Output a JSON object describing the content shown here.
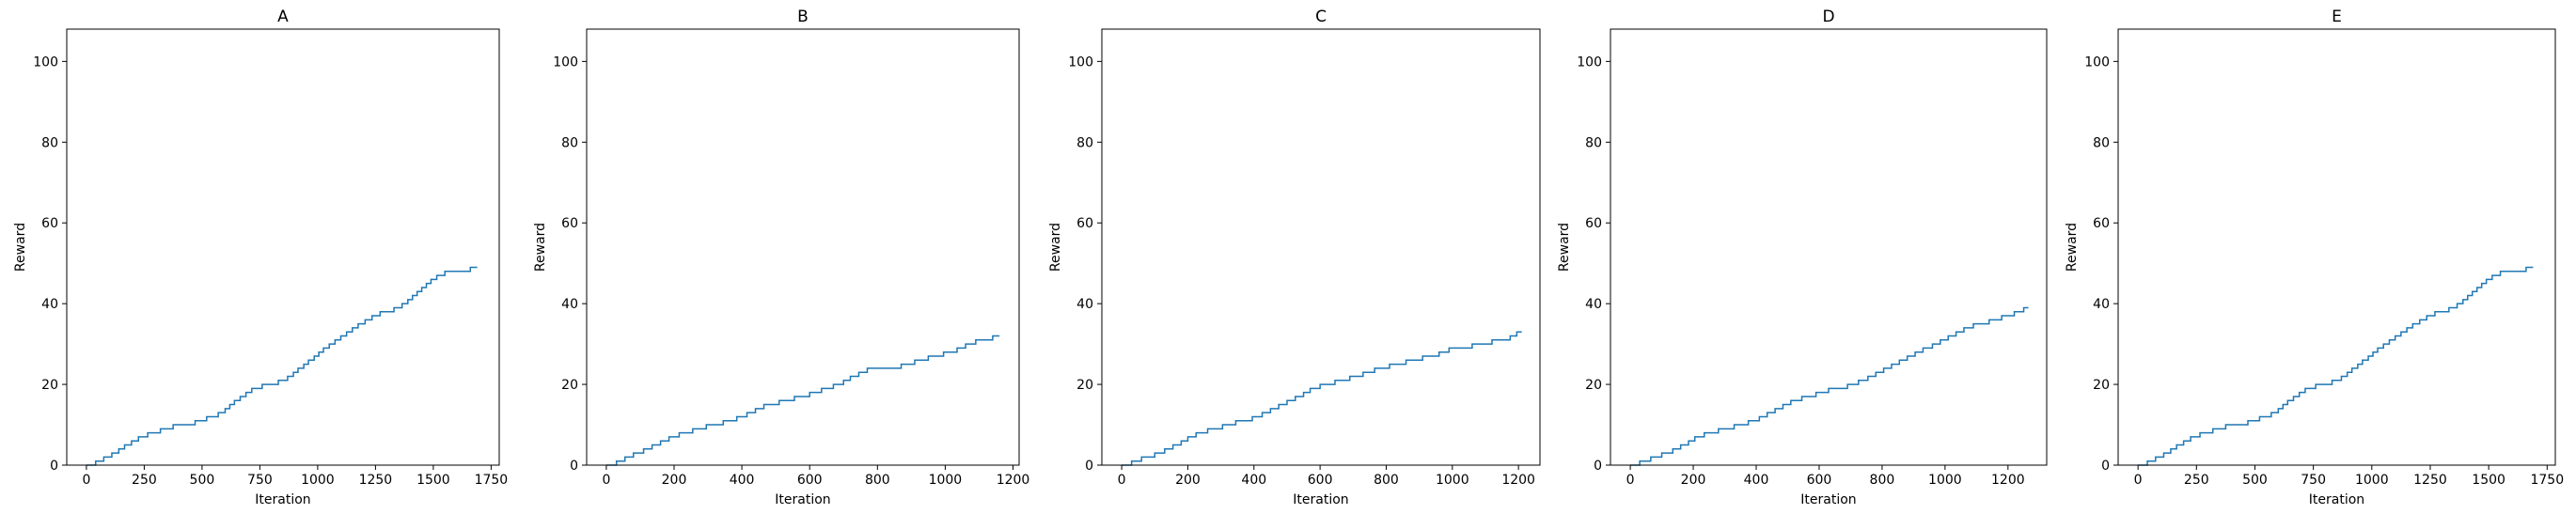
{
  "chart_data": [
    {
      "type": "line",
      "title": "A",
      "xlabel": "Iteration",
      "ylabel": "Reward",
      "xlim": [
        -85,
        1785
      ],
      "ylim": [
        0,
        108
      ],
      "xticks": [
        0,
        250,
        500,
        750,
        1000,
        1250,
        1500,
        1750
      ],
      "yticks": [
        0,
        20,
        40,
        60,
        80,
        100
      ],
      "grid": false,
      "series": [
        {
          "color": "#1f77b4",
          "x": [
            0,
            40,
            75,
            110,
            140,
            165,
            195,
            225,
            265,
            320,
            375,
            470,
            520,
            570,
            600,
            620,
            640,
            665,
            690,
            715,
            760,
            830,
            870,
            895,
            915,
            940,
            960,
            985,
            1005,
            1025,
            1050,
            1075,
            1100,
            1125,
            1150,
            1175,
            1205,
            1235,
            1270,
            1330,
            1365,
            1390,
            1410,
            1430,
            1450,
            1470,
            1490,
            1515,
            1535,
            1550,
            1600,
            1660,
            1690
          ],
          "y": [
            0,
            1,
            2,
            3,
            4,
            5,
            6,
            7,
            8,
            9,
            10,
            11,
            12,
            13,
            14,
            15,
            16,
            17,
            18,
            19,
            20,
            21,
            22,
            23,
            24,
            25,
            26,
            27,
            28,
            29,
            30,
            31,
            32,
            33,
            34,
            35,
            36,
            37,
            38,
            39,
            40,
            41,
            42,
            43,
            44,
            45,
            46,
            47,
            47,
            48,
            48,
            49,
            49
          ]
        }
      ]
    },
    {
      "type": "line",
      "title": "B",
      "xlabel": "Iteration",
      "ylabel": "Reward",
      "xlim": [
        -58,
        1218
      ],
      "ylim": [
        0,
        108
      ],
      "xticks": [
        0,
        200,
        400,
        600,
        800,
        1000,
        1200
      ],
      "yticks": [
        0,
        20,
        40,
        60,
        80,
        100
      ],
      "grid": false,
      "series": [
        {
          "color": "#1f77b4",
          "x": [
            0,
            30,
            55,
            80,
            110,
            135,
            160,
            185,
            215,
            255,
            295,
            345,
            385,
            415,
            440,
            465,
            510,
            555,
            600,
            635,
            670,
            700,
            720,
            745,
            770,
            805,
            870,
            910,
            950,
            995,
            1035,
            1060,
            1090,
            1140,
            1160
          ],
          "y": [
            0,
            1,
            2,
            3,
            4,
            5,
            6,
            7,
            8,
            9,
            10,
            11,
            12,
            13,
            14,
            15,
            16,
            17,
            18,
            19,
            20,
            21,
            22,
            23,
            24,
            24,
            25,
            26,
            27,
            28,
            29,
            30,
            31,
            32,
            32
          ]
        }
      ]
    },
    {
      "type": "line",
      "title": "C",
      "xlabel": "Iteration",
      "ylabel": "Reward",
      "xlim": [
        -60,
        1265
      ],
      "ylim": [
        0,
        108
      ],
      "xticks": [
        0,
        200,
        400,
        600,
        800,
        1000,
        1200
      ],
      "yticks": [
        0,
        20,
        40,
        60,
        80,
        100
      ],
      "grid": false,
      "series": [
        {
          "color": "#1f77b4",
          "x": [
            0,
            30,
            60,
            100,
            130,
            155,
            180,
            200,
            225,
            260,
            305,
            345,
            395,
            425,
            450,
            475,
            500,
            525,
            550,
            570,
            600,
            645,
            690,
            730,
            765,
            810,
            860,
            910,
            960,
            990,
            1060,
            1120,
            1175,
            1195,
            1210
          ],
          "y": [
            0,
            1,
            2,
            3,
            4,
            5,
            6,
            7,
            8,
            9,
            10,
            11,
            12,
            13,
            14,
            15,
            16,
            17,
            18,
            19,
            20,
            21,
            22,
            23,
            24,
            25,
            26,
            27,
            28,
            29,
            30,
            31,
            32,
            33,
            33
          ]
        }
      ]
    },
    {
      "type": "line",
      "title": "D",
      "xlabel": "Iteration",
      "ylabel": "Reward",
      "xlim": [
        -63,
        1323
      ],
      "ylim": [
        0,
        108
      ],
      "xticks": [
        0,
        200,
        400,
        600,
        800,
        1000,
        1200
      ],
      "yticks": [
        0,
        20,
        40,
        60,
        80,
        100
      ],
      "grid": false,
      "series": [
        {
          "color": "#1f77b4",
          "x": [
            0,
            30,
            65,
            100,
            135,
            160,
            185,
            205,
            235,
            280,
            330,
            375,
            410,
            435,
            460,
            485,
            510,
            545,
            590,
            630,
            690,
            725,
            755,
            780,
            805,
            830,
            855,
            880,
            905,
            930,
            960,
            985,
            1010,
            1035,
            1060,
            1090,
            1140,
            1180,
            1220,
            1250,
            1265
          ],
          "y": [
            0,
            1,
            2,
            3,
            4,
            5,
            6,
            7,
            8,
            9,
            10,
            11,
            12,
            13,
            14,
            15,
            16,
            17,
            18,
            19,
            20,
            21,
            22,
            23,
            24,
            25,
            26,
            27,
            28,
            29,
            30,
            31,
            32,
            33,
            34,
            35,
            36,
            37,
            38,
            39,
            39
          ]
        }
      ]
    },
    {
      "type": "line",
      "title": "E",
      "xlabel": "Iteration",
      "ylabel": "Reward",
      "xlim": [
        -85,
        1785
      ],
      "ylim": [
        0,
        108
      ],
      "xticks": [
        0,
        250,
        500,
        750,
        1000,
        1250,
        1500,
        1750
      ],
      "yticks": [
        0,
        20,
        40,
        60,
        80,
        100
      ],
      "grid": false,
      "series": [
        {
          "color": "#1f77b4",
          "x": [
            0,
            40,
            75,
            110,
            140,
            165,
            195,
            225,
            265,
            320,
            375,
            470,
            520,
            570,
            600,
            620,
            640,
            665,
            690,
            715,
            760,
            830,
            870,
            895,
            915,
            940,
            960,
            985,
            1005,
            1025,
            1050,
            1075,
            1100,
            1125,
            1150,
            1175,
            1205,
            1235,
            1270,
            1330,
            1365,
            1390,
            1410,
            1430,
            1450,
            1470,
            1490,
            1515,
            1535,
            1550,
            1600,
            1660,
            1690
          ],
          "y": [
            0,
            1,
            2,
            3,
            4,
            5,
            6,
            7,
            8,
            9,
            10,
            11,
            12,
            13,
            14,
            15,
            16,
            17,
            18,
            19,
            20,
            21,
            22,
            23,
            24,
            25,
            26,
            27,
            28,
            29,
            30,
            31,
            32,
            33,
            34,
            35,
            36,
            37,
            38,
            39,
            40,
            41,
            42,
            43,
            44,
            45,
            46,
            47,
            47,
            48,
            48,
            49,
            49
          ]
        }
      ]
    }
  ]
}
